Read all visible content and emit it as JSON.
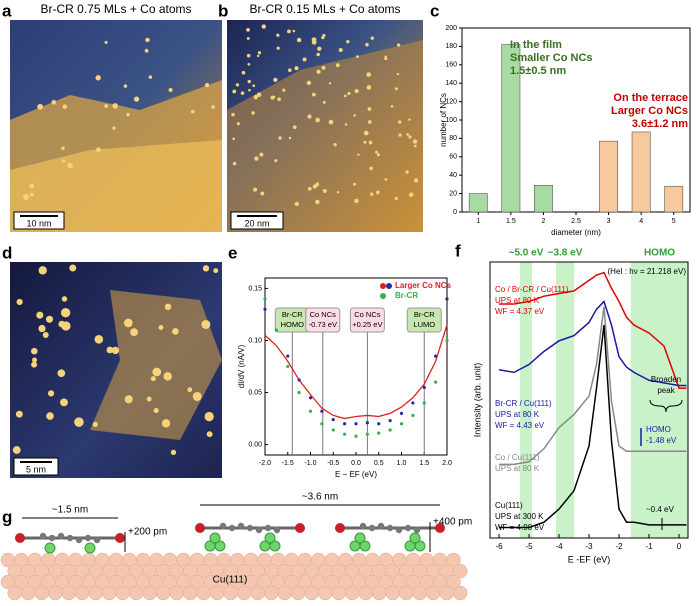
{
  "panel_letters": [
    "a",
    "b",
    "c",
    "d",
    "e",
    "f",
    "g"
  ],
  "images": [
    {
      "title": "Br-CR 0.75 MLs + Co atoms",
      "scale_bar": "10 nm"
    },
    {
      "title": "Br-CR 0.15 MLs + Co atoms",
      "scale_bar": "20 nm"
    },
    {
      "scale_bar": "5 nm"
    }
  ],
  "chart_data": [
    {
      "type": "bar",
      "categories": [
        "1",
        "1.5",
        "2",
        "2.5",
        "3",
        "4",
        "5"
      ],
      "series": [
        {
          "color": "#a7dba2",
          "values": [
            20,
            182,
            29,
            null,
            null,
            null,
            null
          ]
        },
        {
          "color": "#f8c99c",
          "values": [
            null,
            null,
            null,
            null,
            77,
            87,
            28
          ]
        }
      ],
      "ylim": [
        0,
        200
      ],
      "yticks": [
        0,
        20,
        40,
        60,
        80,
        100,
        120,
        140,
        160,
        180,
        200
      ],
      "ylabel": "number of NCs",
      "xlabel": "diameter (nm)",
      "annotations": [
        {
          "lines": [
            "In the film",
            "Smaller Co NCs",
            "1.5±0.5 nm"
          ],
          "color": "#3b6e1f"
        },
        {
          "lines": [
            "On the terrace",
            "Larger Co NCs",
            "3.6±1.2 nm"
          ],
          "color": "#c00000"
        }
      ]
    },
    {
      "type": "line",
      "x": [
        -2,
        -1.75,
        -1.5,
        -1.25,
        -1,
        -0.75,
        -0.5,
        -0.25,
        0,
        0.25,
        0.5,
        0.75,
        1,
        1.25,
        1.5,
        1.75,
        2
      ],
      "series": [
        {
          "name": "Larger Co NCs",
          "color": "#e02020",
          "marker": "line",
          "values": [
            0.105,
            0.095,
            0.08,
            0.062,
            0.048,
            0.035,
            0.028,
            0.025,
            0.027,
            0.028,
            0.027,
            0.03,
            0.036,
            0.045,
            0.058,
            0.08,
            0.115
          ]
        },
        {
          "color": "#2a2aa8",
          "marker": "dot",
          "values": [
            0.13,
            0.11,
            0.085,
            0.062,
            0.045,
            0.032,
            0.024,
            0.02,
            0.02,
            0.021,
            0.02,
            0.023,
            0.03,
            0.04,
            0.055,
            0.085,
            0.14
          ]
        },
        {
          "name": "Br-CR",
          "color": "#2fb34a",
          "marker": "dot",
          "values": [
            0.14,
            0.11,
            0.075,
            0.05,
            0.032,
            0.02,
            0.014,
            0.01,
            0.008,
            0.01,
            0.011,
            0.014,
            0.02,
            0.028,
            0.04,
            0.06,
            0.1
          ]
        }
      ],
      "xlim": [
        -2,
        2
      ],
      "xticks": [
        {
          "value": -2,
          "label": "-2.0"
        },
        {
          "value": -1.5,
          "label": "-1.5"
        },
        {
          "value": -1,
          "label": "-1.0"
        },
        {
          "value": -0.5,
          "label": "-0.5"
        },
        {
          "value": 0,
          "label": "0.0"
        },
        {
          "value": 0.5,
          "label": "0.5"
        },
        {
          "value": 1,
          "label": "1.0"
        },
        {
          "value": 1.5,
          "label": "1.5"
        },
        {
          "value": 2,
          "label": "2.0"
        }
      ],
      "ylim": [
        -0.01,
        0.16
      ],
      "yticks": [
        {
          "value": 0,
          "label": "0.00"
        },
        {
          "value": 0.05,
          "label": "0.05"
        },
        {
          "value": 0.1,
          "label": "0.10"
        },
        {
          "value": 0.15,
          "label": "0.15"
        }
      ],
      "xlabel": "E − EF (eV)",
      "ylabel": "dI/dV (nA/V)",
      "legend": "upper right",
      "vlines": [
        {
          "x": -1.4,
          "lines": [
            "Br-CR",
            "HOMO"
          ],
          "color": "#c8e6b0"
        },
        {
          "x": -0.73,
          "lines": [
            "Co NCs",
            "-0.73 eV"
          ],
          "color": "#fbdbe4"
        },
        {
          "x": 0.25,
          "lines": [
            "Co NCs",
            "+0.25 eV"
          ],
          "color": "#fbdbe4"
        },
        {
          "x": 1.5,
          "lines": [
            "Br-CR",
            "LUMO"
          ],
          "color": "#c8e6b0"
        }
      ]
    },
    {
      "type": "line",
      "x": [
        -6,
        -5.5,
        -5,
        -4.5,
        -4,
        -3.5,
        -3,
        -2.75,
        -2.5,
        -2.25,
        -2,
        -1.75,
        -1.5,
        -1,
        -0.5,
        -0.25,
        0,
        0.25
      ],
      "series": [
        {
          "color": "#e00000",
          "values": [
            89,
            89,
            90,
            92,
            93,
            94,
            98,
            100,
            101,
            95,
            90,
            84,
            81,
            78,
            73,
            65,
            57,
            57
          ]
        },
        {
          "color": "#1a1aa0",
          "values": [
            64,
            63,
            66,
            71,
            75,
            77,
            82,
            87,
            90,
            81,
            69,
            65,
            63,
            60,
            59,
            58.5,
            58,
            58
          ]
        },
        {
          "color": "#888888",
          "values": [
            28,
            28,
            29,
            34,
            42,
            47,
            54,
            66,
            88,
            52,
            35,
            33,
            33,
            33,
            33,
            33,
            33,
            33
          ]
        },
        {
          "color": "#000000",
          "values": [
            4,
            4,
            4,
            6,
            11,
            18,
            35,
            57,
            81,
            37,
            11,
            6,
            6,
            5,
            5,
            5,
            5,
            5
          ]
        }
      ],
      "xlim": [
        -6.3,
        0.3
      ],
      "xticks": [
        -6,
        -5,
        -4,
        -3,
        -2,
        -1,
        0
      ],
      "ylim": [
        0,
        105
      ],
      "xlabel": "E -EF (eV)",
      "ylabel": "Intensity (arb. unit)",
      "bands": [
        {
          "range": [
            -5.3,
            -4.9
          ],
          "label": "~5.0 eV"
        },
        {
          "range": [
            -4.1,
            -3.5
          ],
          "label": "~3.8 eV"
        },
        {
          "range": [
            -1.6,
            0.3
          ],
          "label": "HOMO"
        }
      ],
      "annotations": [
        {
          "lines": [
            "(HeI : hν = 21.218 eV)"
          ],
          "color": "#000000"
        },
        {
          "lines": [
            "Co / Br-CR / Cu(111)",
            "UPS at 80 K",
            "WF = 4.37 eV"
          ],
          "color": "#e00000"
        },
        {
          "lines": [
            "Br-CR / Cu(111)",
            "UPS at 80 K",
            "WF = 4.43 eV"
          ],
          "color": "#1a1aa0"
        },
        {
          "lines": [
            "Co / Cu(111)",
            "UPS at 80 K"
          ],
          "color": "#888888"
        },
        {
          "lines": [
            "Cu(111)",
            "UPS at 300 K",
            "WF = 4.90 eV"
          ],
          "color": "#000000"
        },
        {
          "lines": [
            "Broaden",
            "peak"
          ],
          "color": "#000000"
        },
        {
          "lines": [
            "HOMO",
            "-1.48 eV"
          ],
          "color": "#1a1aa0"
        },
        {
          "lines": [
            "~0.4 eV"
          ],
          "color": "#000000"
        }
      ]
    }
  ],
  "schematic": {
    "labels": [
      "~1.5 nm",
      "+200 pm",
      "~3.6 nm",
      "+400 pm",
      "Cu(111)"
    ]
  }
}
